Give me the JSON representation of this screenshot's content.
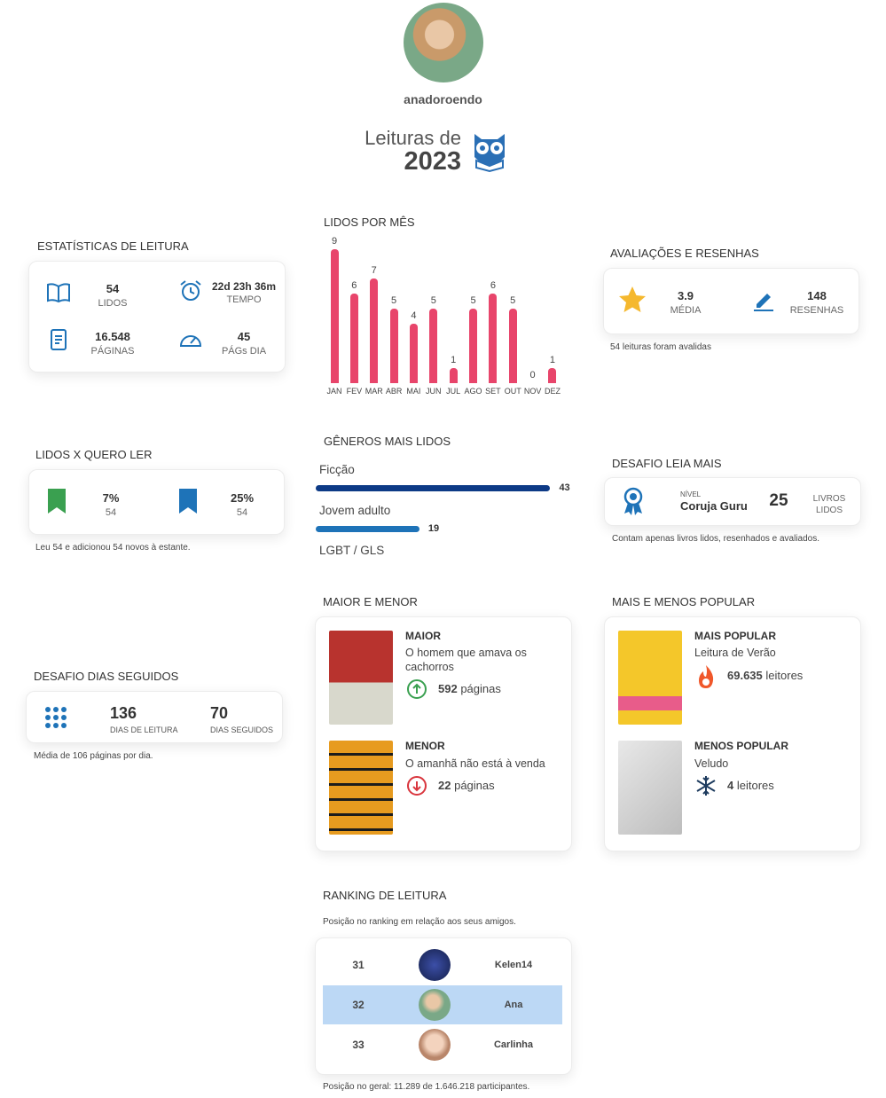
{
  "profile": {
    "username": "anadoroendo"
  },
  "header": {
    "title": "Leituras de",
    "year": "2023"
  },
  "stats": {
    "title": "ESTATÍSTICAS DE LEITURA",
    "items": [
      {
        "value": "54",
        "label": "LIDOS"
      },
      {
        "value": "22d 23h 36m",
        "label": "TEMPO"
      },
      {
        "value": "16.548",
        "label": "PÁGINAS"
      },
      {
        "value": "45",
        "label": "PÁGs DIA"
      }
    ]
  },
  "monthly": {
    "type": "bar",
    "title": "LIDOS POR MÊS",
    "categories": [
      "JAN",
      "FEV",
      "MAR",
      "ABR",
      "MAI",
      "JUN",
      "JUL",
      "AGO",
      "SET",
      "OUT",
      "NOV",
      "DEZ"
    ],
    "values": [
      9,
      6,
      7,
      5,
      4,
      5,
      1,
      5,
      6,
      5,
      0,
      1
    ],
    "color": "#e8456b"
  },
  "ratings": {
    "title": "AVALIAÇÕES E RESENHAS",
    "items": [
      {
        "value": "3.9",
        "label": "MÉDIA"
      },
      {
        "value": "148",
        "label": "RESENHAS"
      }
    ],
    "note": "54 leituras foram avalidas"
  },
  "read_vs_want": {
    "title": "LIDOS X QUERO LER",
    "items": [
      {
        "value": "7%",
        "sub": "54"
      },
      {
        "value": "25%",
        "sub": "54"
      }
    ],
    "note": "Leu 54 e adicionou 54 novos à estante."
  },
  "genres": {
    "title": "GÊNEROS MAIS LIDOS",
    "items": [
      {
        "name": "Ficção",
        "value": 43,
        "color": "#0d3a86"
      },
      {
        "name": "Jovem adulto",
        "value": 19,
        "color": "#1e73b8"
      },
      {
        "name": "LGBT / GLS"
      }
    ]
  },
  "challenge": {
    "title": "DESAFIO LEIA MAIS",
    "level_label": "NÍVEL",
    "level": "Coruja Guru",
    "count": "25",
    "count_label": [
      "LIVROS",
      "LIDOS"
    ],
    "note": "Contam apenas livros lidos, resenhados e avaliados."
  },
  "size": {
    "title": "MAIOR E MENOR",
    "items": [
      {
        "label": "MAIOR",
        "book": "O homem que amava os cachorros",
        "count": "592",
        "unit": "páginas"
      },
      {
        "label": "MENOR",
        "book": "O amanhã não está à venda",
        "count": "22",
        "unit": "páginas"
      }
    ]
  },
  "popularity": {
    "title": "MAIS E MENOS POPULAR",
    "items": [
      {
        "label": "MAIS POPULAR",
        "book": "Leitura de Verão",
        "count": "69.635",
        "unit": "leitores"
      },
      {
        "label": "MENOS POPULAR",
        "book": "Veludo",
        "count": "4",
        "unit": "leitores"
      }
    ]
  },
  "streak": {
    "title": "DESAFIO DIAS SEGUIDOS",
    "items": [
      {
        "value": "136",
        "label": "DIAS DE LEITURA"
      },
      {
        "value": "70",
        "label": "DIAS SEGUIDOS"
      }
    ],
    "note": "Média de 106 páginas por dia."
  },
  "ranking": {
    "title": "RANKING DE LEITURA",
    "subtitle": "Posição no ranking em relação aos seus amigos.",
    "rows": [
      {
        "position": "31",
        "name": "Kelen14"
      },
      {
        "position": "32",
        "name": "Ana"
      },
      {
        "position": "33",
        "name": "Carlinha"
      }
    ],
    "footer": "Posição no geral: 11.289 de 1.646.218 participantes."
  }
}
